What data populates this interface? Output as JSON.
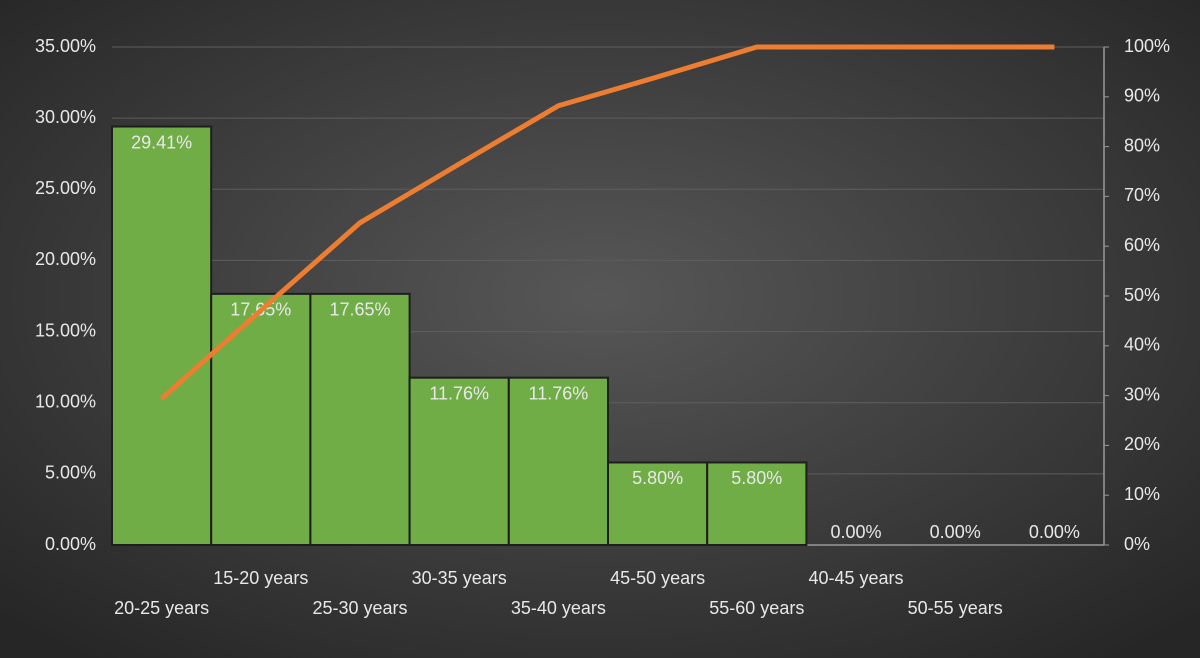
{
  "chart_data": {
    "type": "pareto",
    "categories": [
      "20-25 years",
      "15-20 years",
      "25-30 years",
      "30-35 years",
      "35-40 years",
      "45-50 years",
      "55-60 years",
      "40-45 years",
      "50-55 years",
      null
    ],
    "series": [
      {
        "type": "bar",
        "color": "#70ad47",
        "values": [
          29.41,
          17.65,
          17.65,
          11.76,
          11.76,
          5.8,
          5.8,
          0,
          0,
          0
        ],
        "value_labels": [
          "29.41%",
          "17.65%",
          "17.65%",
          "11.76%",
          "11.76%",
          "5.80%",
          "5.80%",
          "0.00%",
          "0.00%",
          "0.00%"
        ]
      },
      {
        "type": "line",
        "axis": "y2",
        "color": "#ed7d31",
        "values": [
          29.4,
          47.1,
          64.7,
          76.5,
          88.2,
          94.0,
          100,
          100,
          100,
          100
        ]
      }
    ],
    "ylim": [
      0,
      35
    ],
    "yticks": [
      {
        "value": 0,
        "label": "0.00%"
      },
      {
        "value": 5,
        "label": "5.00%"
      },
      {
        "value": 10,
        "label": "10.00%"
      },
      {
        "value": 15,
        "label": "15.00%"
      },
      {
        "value": 20,
        "label": "20.00%"
      },
      {
        "value": 25,
        "label": "25.00%"
      },
      {
        "value": 30,
        "label": "30.00%"
      },
      {
        "value": 35,
        "label": "35.00%"
      }
    ],
    "y2lim": [
      0,
      100
    ],
    "y2ticks": [
      {
        "value": 0,
        "label": "0%"
      },
      {
        "value": 10,
        "label": "10%"
      },
      {
        "value": 20,
        "label": "20%"
      },
      {
        "value": 30,
        "label": "30%"
      },
      {
        "value": 40,
        "label": "40%"
      },
      {
        "value": 50,
        "label": "50%"
      },
      {
        "value": 60,
        "label": "60%"
      },
      {
        "value": 70,
        "label": "70%"
      },
      {
        "value": 80,
        "label": "80%"
      },
      {
        "value": 90,
        "label": "90%"
      },
      {
        "value": 100,
        "label": "100%"
      }
    ],
    "grid": true
  }
}
